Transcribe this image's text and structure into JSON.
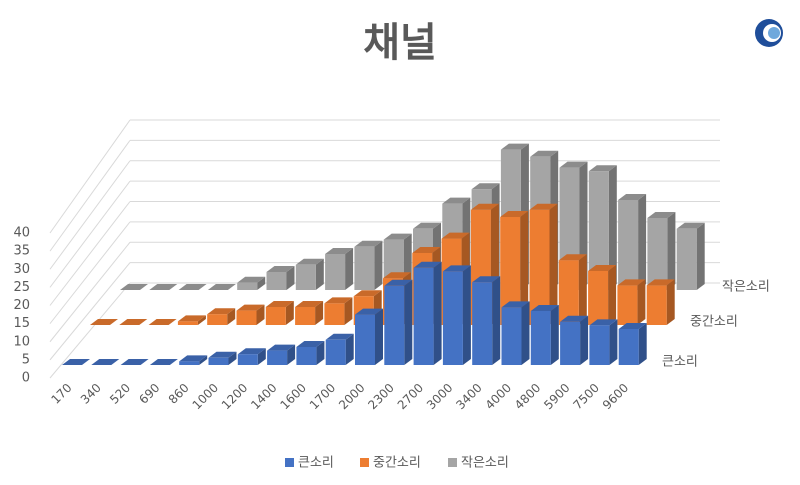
{
  "chart_data": {
    "type": "bar3d",
    "title": "채널",
    "categories": [
      "170",
      "340",
      "520",
      "690",
      "860",
      "1000",
      "1200",
      "1400",
      "1600",
      "1700",
      "2000",
      "2300",
      "2700",
      "3000",
      "3400",
      "4000",
      "4800",
      "5900",
      "7500",
      "9600"
    ],
    "series": [
      {
        "name": "큰소리",
        "color": "#4472c4",
        "values": [
          0,
          0,
          0,
          0,
          1,
          2,
          3,
          4,
          5,
          7,
          14,
          22,
          27,
          26,
          23,
          16,
          15,
          12,
          11,
          10
        ]
      },
      {
        "name": "중간소리",
        "color": "#ed7d31",
        "values": [
          0,
          0,
          0,
          1,
          3,
          4,
          5,
          5,
          6,
          8,
          13,
          20,
          24,
          32,
          30,
          32,
          18,
          15,
          11,
          11
        ]
      },
      {
        "name": "작은소리",
        "color": "#a5a5a5",
        "values": [
          0,
          0,
          0,
          0,
          2,
          5,
          7,
          10,
          12,
          14,
          17,
          24,
          28,
          39,
          37,
          34,
          33,
          25,
          20,
          17
        ]
      }
    ],
    "ylim": [
      0,
      40
    ],
    "yticks": [
      0,
      5,
      10,
      15,
      20,
      25,
      30,
      35,
      40
    ],
    "grid": true,
    "legend": "bottom"
  }
}
